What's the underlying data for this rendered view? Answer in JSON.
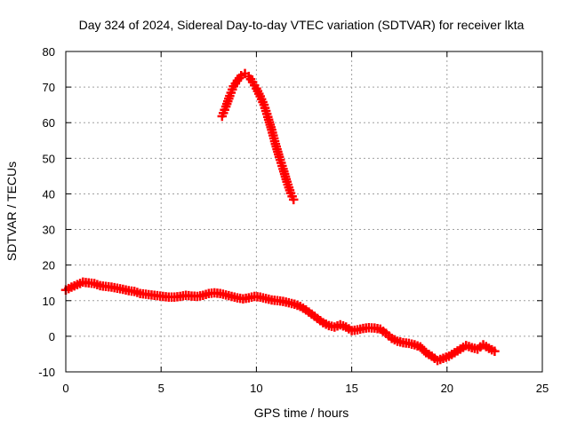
{
  "chart_data": {
    "type": "scatter",
    "title": "Day 324 of 2024, Sidereal Day-to-day VTEC variation (SDTVAR) for receiver lkta",
    "xlabel": "GPS time / hours",
    "ylabel": "SDTVAR / TECUs",
    "xlim": [
      0,
      25
    ],
    "ylim": [
      -10,
      80
    ],
    "xticks": [
      0,
      5,
      10,
      15,
      20,
      25
    ],
    "yticks": [
      -10,
      0,
      10,
      20,
      30,
      40,
      50,
      60,
      70,
      80
    ],
    "xtick_labels": [
      "0",
      "5",
      "10",
      "15",
      "20",
      "25"
    ],
    "ytick_labels": [
      "-10",
      "0",
      "10",
      "20",
      "30",
      "40",
      "50",
      "60",
      "70",
      "80"
    ],
    "grid": true,
    "marker": "plus",
    "color": "#ff0000",
    "series": [
      {
        "name": "main trace",
        "x": [
          0.0,
          0.3,
          0.6,
          0.9,
          1.2,
          1.5,
          1.8,
          2.1,
          2.4,
          2.7,
          3.0,
          3.3,
          3.6,
          3.9,
          4.2,
          4.5,
          4.8,
          5.1,
          5.4,
          5.7,
          6.0,
          6.3,
          6.6,
          6.9,
          7.2,
          7.5,
          7.8,
          8.1,
          8.4,
          8.7,
          9.0,
          9.3,
          9.6,
          9.9,
          10.2,
          10.5,
          10.8,
          11.1,
          11.4,
          11.7,
          12.0,
          12.3,
          12.6,
          12.9,
          13.2,
          13.5,
          13.8,
          14.1,
          14.4,
          14.7,
          15.0,
          15.3,
          15.6,
          15.9,
          16.2,
          16.5,
          16.8,
          17.1,
          17.4,
          17.7,
          18.0,
          18.3,
          18.6,
          18.9,
          19.2,
          19.5,
          19.8,
          20.1,
          20.4,
          20.7,
          21.0,
          21.3,
          21.6,
          21.9,
          22.2,
          22.5
        ],
        "y": [
          13.0,
          13.8,
          14.5,
          15.2,
          15.0,
          14.8,
          14.2,
          14.0,
          13.8,
          13.5,
          13.2,
          12.8,
          12.6,
          12.0,
          11.8,
          11.6,
          11.4,
          11.2,
          11.0,
          11.0,
          11.2,
          11.5,
          11.3,
          11.2,
          11.5,
          12.0,
          12.2,
          12.0,
          11.6,
          11.2,
          10.8,
          10.5,
          10.8,
          11.2,
          11.0,
          10.6,
          10.2,
          10.0,
          9.8,
          9.4,
          9.0,
          8.4,
          7.4,
          6.2,
          5.0,
          3.8,
          3.0,
          2.6,
          3.2,
          2.6,
          1.6,
          1.8,
          2.2,
          2.4,
          2.3,
          2.0,
          0.8,
          -0.6,
          -1.4,
          -1.8,
          -2.0,
          -2.4,
          -3.0,
          -4.6,
          -5.6,
          -6.8,
          -6.2,
          -5.6,
          -4.6,
          -3.6,
          -2.6,
          -3.2,
          -3.6,
          -2.4,
          -3.4,
          -4.2
        ]
      },
      {
        "name": "peak trace",
        "x": [
          8.2,
          8.4,
          8.6,
          8.8,
          9.0,
          9.2,
          9.4,
          9.6,
          9.8,
          10.0,
          10.2,
          10.4,
          10.6,
          10.8,
          11.0,
          11.2,
          11.4,
          11.6,
          11.8,
          11.95
        ],
        "y": [
          61.8,
          64.5,
          67.5,
          70.2,
          71.8,
          73.2,
          73.8,
          73.0,
          71.4,
          69.6,
          67.4,
          65.0,
          61.6,
          58.0,
          54.0,
          50.4,
          47.0,
          43.4,
          40.2,
          38.4
        ]
      }
    ]
  }
}
